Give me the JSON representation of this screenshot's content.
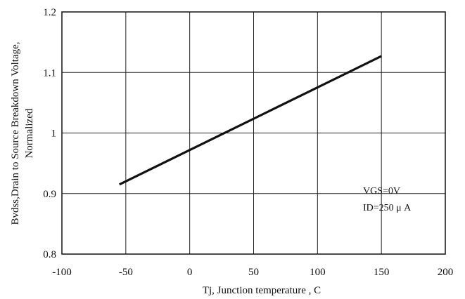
{
  "chart_data": {
    "type": "line",
    "xlabel": "Tj, Junction temperature , C",
    "ylabel_lines": [
      "Bvdss,Drain to Source Breakdown Voltage,",
      "Normalized"
    ],
    "xlim": [
      -100,
      200
    ],
    "ylim": [
      0.8,
      1.2
    ],
    "x_ticks": [
      -100,
      -50,
      0,
      50,
      100,
      150,
      200
    ],
    "y_ticks": [
      0.8,
      0.9,
      1,
      1.1,
      1.2
    ],
    "x_tick_labels": [
      "-100",
      "-50",
      "0",
      "50",
      "100",
      "150",
      "200"
    ],
    "y_tick_labels": [
      "0.8",
      "0.9",
      "1",
      "1.1",
      "1.2"
    ],
    "grid": true,
    "series": [
      {
        "x": [
          -55,
          150
        ],
        "y": [
          0.915,
          1.127
        ],
        "color": "#111111"
      }
    ],
    "annotations": [
      "VGS=0V",
      "ID=250 μ A"
    ]
  }
}
